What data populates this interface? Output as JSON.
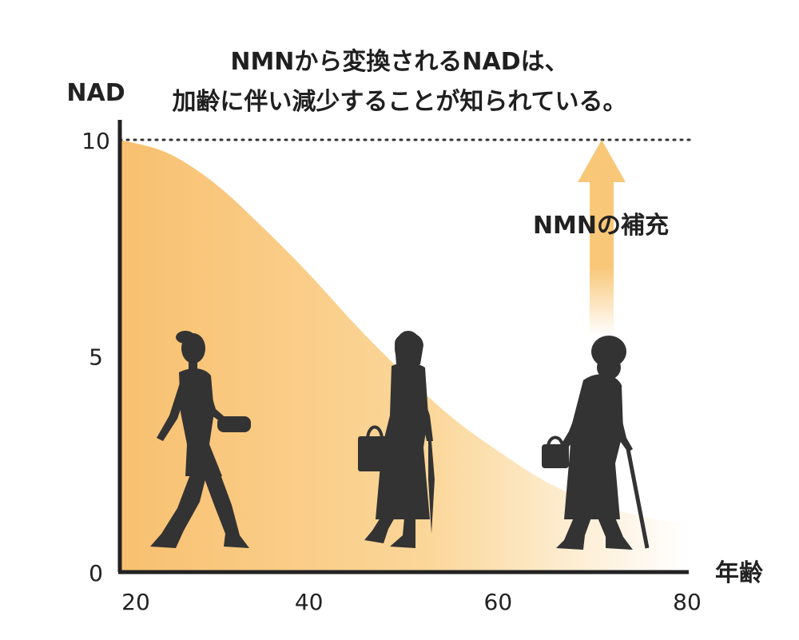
{
  "title_lines": [
    "NMNから変換されるNADは、",
    "加齢に伴い減少することが知られている。"
  ],
  "annotation": "NMNの補充",
  "colors": {
    "fill_top": "#f8c070",
    "fill_fade": "#ffffff",
    "arrow": "#f9c778",
    "axis": "#222222",
    "silhouette": "#333333"
  },
  "chart_data": {
    "type": "area",
    "xlabel": "年齢",
    "ylabel": "NAD",
    "xlim": [
      20,
      80
    ],
    "ylim": [
      0,
      10
    ],
    "x_ticks": [
      "20",
      "40",
      "60",
      "80"
    ],
    "y_ticks": [
      "0",
      "5",
      "10"
    ],
    "grid": false,
    "reference_line": {
      "y": 10,
      "style": "dotted"
    },
    "x": [
      20,
      25,
      30,
      35,
      40,
      45,
      50,
      55,
      60,
      65,
      70,
      75,
      80
    ],
    "values": [
      10,
      9.7,
      9.0,
      8.0,
      6.9,
      5.7,
      4.6,
      3.6,
      2.8,
      2.1,
      1.6,
      1.3,
      1.1
    ],
    "figures": [
      {
        "name": "young-woman-silhouette",
        "age": 27
      },
      {
        "name": "middle-aged-woman-silhouette",
        "age": 50
      },
      {
        "name": "elderly-woman-silhouette",
        "age": 70
      }
    ]
  }
}
